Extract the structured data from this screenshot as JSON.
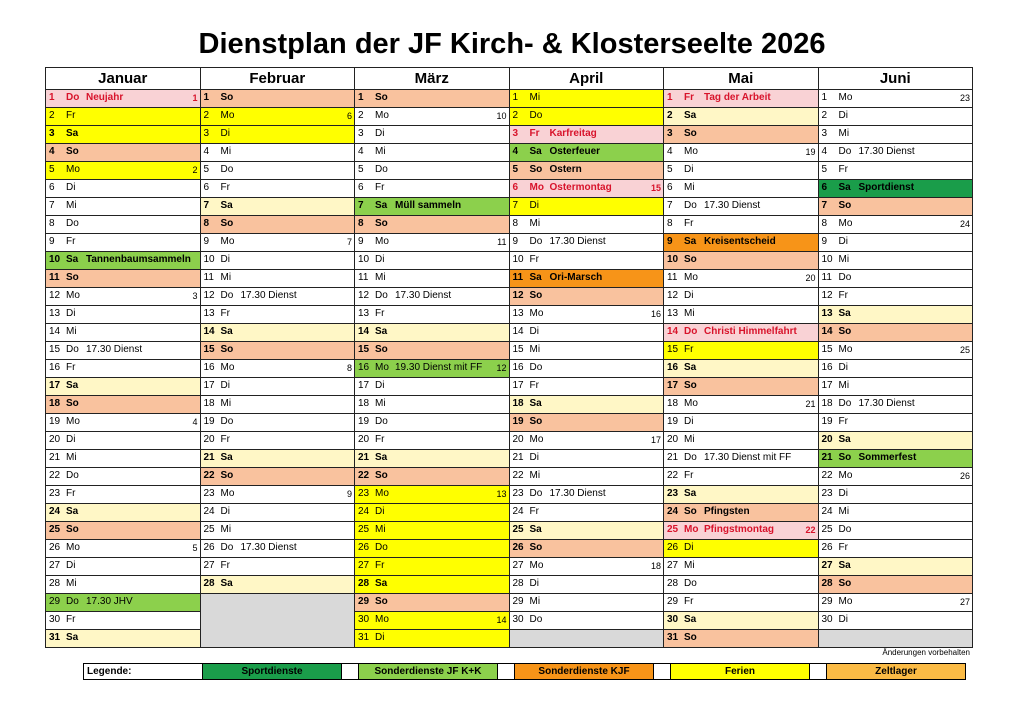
{
  "title": "Dienstplan der JF Kirch- & Klosterseelte 2026",
  "note": "Änderungen vorbehalten",
  "colors": {
    "white": "#ffffff",
    "weekend_sa": "#fff7c6",
    "weekend_so": "#f9c29e",
    "holiday": "#f9d2d5",
    "ferien": "#ffff00",
    "sportdienste": "#1a9d4a",
    "sonder_kk": "#8cd04c",
    "sonder_kjf": "#f79418",
    "zeitlager": "#fbbb45",
    "empty": "#d9d9d9"
  },
  "legend": {
    "label": "Legende:",
    "items": [
      {
        "label": "Sportdienste",
        "color": "sportdienste"
      },
      {
        "label": "Sonderdienste JF K+K",
        "color": "sonder_kk"
      },
      {
        "label": "Sonderdienste KJF",
        "color": "sonder_kjf"
      },
      {
        "label": "Ferien",
        "color": "ferien"
      },
      {
        "label": "Zeltlager",
        "color": "zeitlager"
      }
    ]
  },
  "months": [
    {
      "name": "Januar",
      "days": [
        {
          "d": "1",
          "w": "Do",
          "e": "Neujahr",
          "k": "1",
          "bg": "holiday",
          "red": true
        },
        {
          "d": "2",
          "w": "Fr",
          "bg": "ferien"
        },
        {
          "d": "3",
          "w": "Sa",
          "bg": "ferien",
          "b": true
        },
        {
          "d": "4",
          "w": "So",
          "bg": "weekend_so",
          "b": true
        },
        {
          "d": "5",
          "w": "Mo",
          "k": "2",
          "bg": "ferien"
        },
        {
          "d": "6",
          "w": "Di"
        },
        {
          "d": "7",
          "w": "Mi"
        },
        {
          "d": "8",
          "w": "Do"
        },
        {
          "d": "9",
          "w": "Fr"
        },
        {
          "d": "10",
          "w": "Sa",
          "e": "Tannenbaumsammeln",
          "bg": "sonder_kk",
          "b": true
        },
        {
          "d": "11",
          "w": "So",
          "bg": "weekend_so",
          "b": true
        },
        {
          "d": "12",
          "w": "Mo",
          "k": "3"
        },
        {
          "d": "13",
          "w": "Di"
        },
        {
          "d": "14",
          "w": "Mi"
        },
        {
          "d": "15",
          "w": "Do",
          "e": "17.30 Dienst"
        },
        {
          "d": "16",
          "w": "Fr"
        },
        {
          "d": "17",
          "w": "Sa",
          "bg": "weekend_sa",
          "b": true
        },
        {
          "d": "18",
          "w": "So",
          "bg": "weekend_so",
          "b": true
        },
        {
          "d": "19",
          "w": "Mo",
          "k": "4"
        },
        {
          "d": "20",
          "w": "Di"
        },
        {
          "d": "21",
          "w": "Mi"
        },
        {
          "d": "22",
          "w": "Do"
        },
        {
          "d": "23",
          "w": "Fr"
        },
        {
          "d": "24",
          "w": "Sa",
          "bg": "weekend_sa",
          "b": true
        },
        {
          "d": "25",
          "w": "So",
          "bg": "weekend_so",
          "b": true
        },
        {
          "d": "26",
          "w": "Mo",
          "k": "5"
        },
        {
          "d": "27",
          "w": "Di"
        },
        {
          "d": "28",
          "w": "Mi"
        },
        {
          "d": "29",
          "w": "Do",
          "e": "17.30 JHV",
          "bg": "sonder_kk"
        },
        {
          "d": "30",
          "w": "Fr"
        },
        {
          "d": "31",
          "w": "Sa",
          "bg": "weekend_sa",
          "b": true
        }
      ]
    },
    {
      "name": "Februar",
      "days": [
        {
          "d": "1",
          "w": "So",
          "bg": "weekend_so",
          "b": true
        },
        {
          "d": "2",
          "w": "Mo",
          "k": "6",
          "bg": "ferien"
        },
        {
          "d": "3",
          "w": "Di",
          "bg": "ferien"
        },
        {
          "d": "4",
          "w": "Mi"
        },
        {
          "d": "5",
          "w": "Do"
        },
        {
          "d": "6",
          "w": "Fr"
        },
        {
          "d": "7",
          "w": "Sa",
          "bg": "weekend_sa",
          "b": true
        },
        {
          "d": "8",
          "w": "So",
          "bg": "weekend_so",
          "b": true
        },
        {
          "d": "9",
          "w": "Mo",
          "k": "7"
        },
        {
          "d": "10",
          "w": "Di"
        },
        {
          "d": "11",
          "w": "Mi"
        },
        {
          "d": "12",
          "w": "Do",
          "e": "17.30 Dienst"
        },
        {
          "d": "13",
          "w": "Fr"
        },
        {
          "d": "14",
          "w": "Sa",
          "bg": "weekend_sa",
          "b": true
        },
        {
          "d": "15",
          "w": "So",
          "bg": "weekend_so",
          "b": true
        },
        {
          "d": "16",
          "w": "Mo",
          "k": "8"
        },
        {
          "d": "17",
          "w": "Di"
        },
        {
          "d": "18",
          "w": "Mi"
        },
        {
          "d": "19",
          "w": "Do"
        },
        {
          "d": "20",
          "w": "Fr"
        },
        {
          "d": "21",
          "w": "Sa",
          "bg": "weekend_sa",
          "b": true
        },
        {
          "d": "22",
          "w": "So",
          "bg": "weekend_so",
          "b": true
        },
        {
          "d": "23",
          "w": "Mo",
          "k": "9"
        },
        {
          "d": "24",
          "w": "Di"
        },
        {
          "d": "25",
          "w": "Mi"
        },
        {
          "d": "26",
          "w": "Do",
          "e": "17.30 Dienst"
        },
        {
          "d": "27",
          "w": "Fr"
        },
        {
          "d": "28",
          "w": "Sa",
          "bg": "weekend_sa",
          "b": true
        }
      ]
    },
    {
      "name": "März",
      "days": [
        {
          "d": "1",
          "w": "So",
          "bg": "weekend_so",
          "b": true
        },
        {
          "d": "2",
          "w": "Mo",
          "k": "10"
        },
        {
          "d": "3",
          "w": "Di"
        },
        {
          "d": "4",
          "w": "Mi"
        },
        {
          "d": "5",
          "w": "Do"
        },
        {
          "d": "6",
          "w": "Fr"
        },
        {
          "d": "7",
          "w": "Sa",
          "e": "Müll sammeln",
          "bg": "sonder_kk",
          "b": true
        },
        {
          "d": "8",
          "w": "So",
          "bg": "weekend_so",
          "b": true
        },
        {
          "d": "9",
          "w": "Mo",
          "k": "11"
        },
        {
          "d": "10",
          "w": "Di"
        },
        {
          "d": "11",
          "w": "Mi"
        },
        {
          "d": "12",
          "w": "Do",
          "e": "17.30 Dienst"
        },
        {
          "d": "13",
          "w": "Fr"
        },
        {
          "d": "14",
          "w": "Sa",
          "bg": "weekend_sa",
          "b": true
        },
        {
          "d": "15",
          "w": "So",
          "bg": "weekend_so",
          "b": true
        },
        {
          "d": "16",
          "w": "Mo",
          "e": "19.30 Dienst mit FF",
          "k": "12",
          "bg": "sonder_kk"
        },
        {
          "d": "17",
          "w": "Di"
        },
        {
          "d": "18",
          "w": "Mi"
        },
        {
          "d": "19",
          "w": "Do"
        },
        {
          "d": "20",
          "w": "Fr"
        },
        {
          "d": "21",
          "w": "Sa",
          "bg": "weekend_sa",
          "b": true
        },
        {
          "d": "22",
          "w": "So",
          "bg": "weekend_so",
          "b": true
        },
        {
          "d": "23",
          "w": "Mo",
          "k": "13",
          "bg": "ferien"
        },
        {
          "d": "24",
          "w": "Di",
          "bg": "ferien"
        },
        {
          "d": "25",
          "w": "Mi",
          "bg": "ferien"
        },
        {
          "d": "26",
          "w": "Do",
          "bg": "ferien"
        },
        {
          "d": "27",
          "w": "Fr",
          "bg": "ferien"
        },
        {
          "d": "28",
          "w": "Sa",
          "bg": "ferien",
          "b": true
        },
        {
          "d": "29",
          "w": "So",
          "bg": "weekend_so",
          "b": true
        },
        {
          "d": "30",
          "w": "Mo",
          "k": "14",
          "bg": "ferien"
        },
        {
          "d": "31",
          "w": "Di",
          "bg": "ferien"
        }
      ]
    },
    {
      "name": "April",
      "days": [
        {
          "d": "1",
          "w": "Mi",
          "bg": "ferien"
        },
        {
          "d": "2",
          "w": "Do",
          "bg": "ferien"
        },
        {
          "d": "3",
          "w": "Fr",
          "e": "Karfreitag",
          "bg": "holiday",
          "red": true
        },
        {
          "d": "4",
          "w": "Sa",
          "e": "Osterfeuer",
          "bg": "sonder_kk",
          "b": true
        },
        {
          "d": "5",
          "w": "So",
          "e": "Ostern",
          "bg": "weekend_so",
          "b": true
        },
        {
          "d": "6",
          "w": "Mo",
          "e": "Ostermontag",
          "k": "15",
          "bg": "holiday",
          "red": true
        },
        {
          "d": "7",
          "w": "Di",
          "bg": "ferien"
        },
        {
          "d": "8",
          "w": "Mi"
        },
        {
          "d": "9",
          "w": "Do",
          "e": "17.30 Dienst"
        },
        {
          "d": "10",
          "w": "Fr"
        },
        {
          "d": "11",
          "w": "Sa",
          "e": "Ori-Marsch",
          "bg": "sonder_kjf",
          "b": true
        },
        {
          "d": "12",
          "w": "So",
          "bg": "weekend_so",
          "b": true
        },
        {
          "d": "13",
          "w": "Mo",
          "k": "16"
        },
        {
          "d": "14",
          "w": "Di"
        },
        {
          "d": "15",
          "w": "Mi"
        },
        {
          "d": "16",
          "w": "Do"
        },
        {
          "d": "17",
          "w": "Fr"
        },
        {
          "d": "18",
          "w": "Sa",
          "bg": "weekend_sa",
          "b": true
        },
        {
          "d": "19",
          "w": "So",
          "bg": "weekend_so",
          "b": true
        },
        {
          "d": "20",
          "w": "Mo",
          "k": "17"
        },
        {
          "d": "21",
          "w": "Di"
        },
        {
          "d": "22",
          "w": "Mi"
        },
        {
          "d": "23",
          "w": "Do",
          "e": "17.30 Dienst"
        },
        {
          "d": "24",
          "w": "Fr"
        },
        {
          "d": "25",
          "w": "Sa",
          "bg": "weekend_sa",
          "b": true
        },
        {
          "d": "26",
          "w": "So",
          "bg": "weekend_so",
          "b": true
        },
        {
          "d": "27",
          "w": "Mo",
          "k": "18"
        },
        {
          "d": "28",
          "w": "Di"
        },
        {
          "d": "29",
          "w": "Mi"
        },
        {
          "d": "30",
          "w": "Do"
        }
      ]
    },
    {
      "name": "Mai",
      "days": [
        {
          "d": "1",
          "w": "Fr",
          "e": "Tag der Arbeit",
          "bg": "holiday",
          "red": true
        },
        {
          "d": "2",
          "w": "Sa",
          "bg": "weekend_sa",
          "b": true
        },
        {
          "d": "3",
          "w": "So",
          "bg": "weekend_so",
          "b": true
        },
        {
          "d": "4",
          "w": "Mo",
          "k": "19"
        },
        {
          "d": "5",
          "w": "Di"
        },
        {
          "d": "6",
          "w": "Mi"
        },
        {
          "d": "7",
          "w": "Do",
          "e": "17.30 Dienst"
        },
        {
          "d": "8",
          "w": "Fr"
        },
        {
          "d": "9",
          "w": "Sa",
          "e": "Kreisentscheid",
          "bg": "sonder_kjf",
          "b": true
        },
        {
          "d": "10",
          "w": "So",
          "bg": "weekend_so",
          "b": true
        },
        {
          "d": "11",
          "w": "Mo",
          "k": "20"
        },
        {
          "d": "12",
          "w": "Di"
        },
        {
          "d": "13",
          "w": "Mi"
        },
        {
          "d": "14",
          "w": "Do",
          "e": "Christi Himmelfahrt",
          "bg": "holiday",
          "red": true
        },
        {
          "d": "15",
          "w": "Fr",
          "bg": "ferien"
        },
        {
          "d": "16",
          "w": "Sa",
          "bg": "weekend_sa",
          "b": true
        },
        {
          "d": "17",
          "w": "So",
          "bg": "weekend_so",
          "b": true
        },
        {
          "d": "18",
          "w": "Mo",
          "k": "21"
        },
        {
          "d": "19",
          "w": "Di"
        },
        {
          "d": "20",
          "w": "Mi"
        },
        {
          "d": "21",
          "w": "Do",
          "e": "17.30 Dienst mit FF"
        },
        {
          "d": "22",
          "w": "Fr"
        },
        {
          "d": "23",
          "w": "Sa",
          "bg": "weekend_sa",
          "b": true
        },
        {
          "d": "24",
          "w": "So",
          "e": "Pfingsten",
          "bg": "weekend_so",
          "b": true
        },
        {
          "d": "25",
          "w": "Mo",
          "e": "Pfingstmontag",
          "k": "22",
          "bg": "holiday",
          "red": true
        },
        {
          "d": "26",
          "w": "Di",
          "bg": "ferien"
        },
        {
          "d": "27",
          "w": "Mi"
        },
        {
          "d": "28",
          "w": "Do"
        },
        {
          "d": "29",
          "w": "Fr"
        },
        {
          "d": "30",
          "w": "Sa",
          "bg": "weekend_sa",
          "b": true
        },
        {
          "d": "31",
          "w": "So",
          "bg": "weekend_so",
          "b": true
        }
      ]
    },
    {
      "name": "Juni",
      "days": [
        {
          "d": "1",
          "w": "Mo",
          "k": "23"
        },
        {
          "d": "2",
          "w": "Di"
        },
        {
          "d": "3",
          "w": "Mi"
        },
        {
          "d": "4",
          "w": "Do",
          "e": "17.30 Dienst"
        },
        {
          "d": "5",
          "w": "Fr"
        },
        {
          "d": "6",
          "w": "Sa",
          "e": "Sportdienst",
          "bg": "sportdienste",
          "b": true
        },
        {
          "d": "7",
          "w": "So",
          "bg": "weekend_so",
          "b": true
        },
        {
          "d": "8",
          "w": "Mo",
          "k": "24"
        },
        {
          "d": "9",
          "w": "Di"
        },
        {
          "d": "10",
          "w": "Mi"
        },
        {
          "d": "11",
          "w": "Do"
        },
        {
          "d": "12",
          "w": "Fr"
        },
        {
          "d": "13",
          "w": "Sa",
          "bg": "weekend_sa",
          "b": true
        },
        {
          "d": "14",
          "w": "So",
          "bg": "weekend_so",
          "b": true
        },
        {
          "d": "15",
          "w": "Mo",
          "k": "25"
        },
        {
          "d": "16",
          "w": "Di"
        },
        {
          "d": "17",
          "w": "Mi"
        },
        {
          "d": "18",
          "w": "Do",
          "e": "17.30 Dienst"
        },
        {
          "d": "19",
          "w": "Fr"
        },
        {
          "d": "20",
          "w": "Sa",
          "bg": "weekend_sa",
          "b": true
        },
        {
          "d": "21",
          "w": "So",
          "e": "Sommerfest",
          "bg": "sonder_kk",
          "b": true
        },
        {
          "d": "22",
          "w": "Mo",
          "k": "26"
        },
        {
          "d": "23",
          "w": "Di"
        },
        {
          "d": "24",
          "w": "Mi"
        },
        {
          "d": "25",
          "w": "Do"
        },
        {
          "d": "26",
          "w": "Fr"
        },
        {
          "d": "27",
          "w": "Sa",
          "bg": "weekend_sa",
          "b": true
        },
        {
          "d": "28",
          "w": "So",
          "bg": "weekend_so",
          "b": true
        },
        {
          "d": "29",
          "w": "Mo",
          "k": "27"
        },
        {
          "d": "30",
          "w": "Di"
        }
      ]
    }
  ]
}
